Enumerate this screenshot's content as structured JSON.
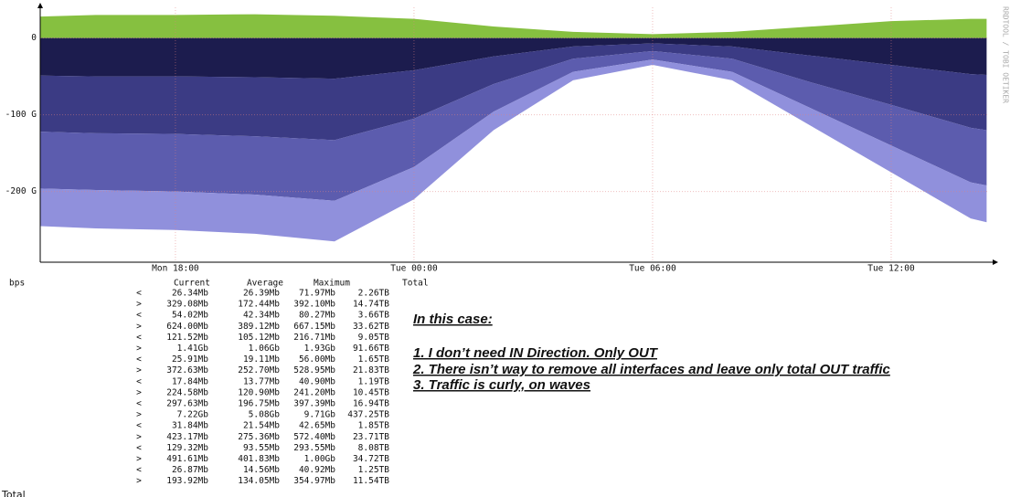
{
  "chart_data": {
    "type": "stacked-area",
    "x": [
      14.6,
      16,
      18,
      20,
      22,
      24,
      26,
      28,
      30,
      32,
      34,
      36,
      38,
      38.4
    ],
    "series": [
      {
        "color": "#86c040",
        "values": [
          28,
          30,
          30,
          31,
          29,
          25,
          15,
          8,
          5,
          8,
          15,
          22,
          25,
          25
        ]
      },
      {
        "color": "#1c1c4e",
        "values": [
          -49,
          -50,
          -50,
          -51,
          -53,
          -42,
          -24,
          -11,
          -7,
          -11,
          -23,
          -35,
          -47,
          -48
        ]
      },
      {
        "color": "#3b3b84",
        "values": [
          -73,
          -74,
          -75,
          -77,
          -80,
          -63,
          -36,
          -16,
          -10,
          -16,
          -35,
          -52,
          -70,
          -72
        ]
      },
      {
        "color": "#5c5cae",
        "values": [
          -74,
          -74,
          -75,
          -76,
          -79,
          -63,
          -36,
          -17,
          -11,
          -17,
          -34,
          -53,
          -71,
          -72
        ]
      },
      {
        "color": "#9090dc",
        "values": [
          -49,
          -50,
          -50,
          -51,
          -53,
          -42,
          -24,
          -11,
          -7,
          -11,
          -23,
          -35,
          -47,
          -48
        ]
      }
    ],
    "xlim": [
      14.6,
      38.46
    ],
    "xticks": [
      {
        "value": 18,
        "label": "Mon 18:00"
      },
      {
        "value": 24,
        "label": "Tue 00:00"
      },
      {
        "value": 30,
        "label": "Tue 06:00"
      },
      {
        "value": 36,
        "label": "Tue 12:00"
      }
    ],
    "ylim": [
      -292,
      40
    ],
    "yticks": [
      0,
      {
        "value": -100,
        "label": "-100 G"
      },
      {
        "value": -200,
        "label": "-200 G"
      }
    ],
    "grid": true,
    "watermark": "RRDTOOL / TOBI OETIKER"
  },
  "table": {
    "unit": "bps",
    "headers": [
      "Current",
      "Average",
      "Maximum",
      "Total"
    ],
    "rows": [
      [
        "<",
        "26.34Mb",
        "26.39Mb",
        "71.97Mb",
        "2.26TB"
      ],
      [
        ">",
        "329.08Mb",
        "172.44Mb",
        "392.10Mb",
        "14.74TB"
      ],
      [
        "<",
        "54.02Mb",
        "42.34Mb",
        "80.27Mb",
        "3.66TB"
      ],
      [
        ">",
        "624.00Mb",
        "389.12Mb",
        "667.15Mb",
        "33.62TB"
      ],
      [
        "<",
        "121.52Mb",
        "105.12Mb",
        "216.71Mb",
        "9.05TB"
      ],
      [
        ">",
        "1.41Gb",
        "1.06Gb",
        "1.93Gb",
        "91.66TB"
      ],
      [
        "<",
        "25.91Mb",
        "19.11Mb",
        "56.00Mb",
        "1.65TB"
      ],
      [
        ">",
        "372.63Mb",
        "252.70Mb",
        "528.95Mb",
        "21.83TB"
      ],
      [
        "<",
        "17.84Mb",
        "13.77Mb",
        "40.90Mb",
        "1.19TB"
      ],
      [
        ">",
        "224.58Mb",
        "120.90Mb",
        "241.20Mb",
        "10.45TB"
      ],
      [
        "<",
        "297.63Mb",
        "196.75Mb",
        "397.39Mb",
        "16.94TB"
      ],
      [
        ">",
        "7.22Gb",
        "5.08Gb",
        "9.71Gb",
        "437.25TB"
      ],
      [
        "<",
        "31.84Mb",
        "21.54Mb",
        "42.65Mb",
        "1.85TB"
      ],
      [
        ">",
        "423.17Mb",
        "275.36Mb",
        "572.40Mb",
        "23.71TB"
      ],
      [
        "<",
        "129.32Mb",
        "93.55Mb",
        "293.55Mb",
        "8.08TB"
      ],
      [
        ">",
        "491.61Mb",
        "401.83Mb",
        "1.00Gb",
        "34.72TB"
      ],
      [
        "<",
        "26.87Mb",
        "14.56Mb",
        "40.92Mb",
        "1.25TB"
      ],
      [
        ">",
        "193.92Mb",
        "134.05Mb",
        "354.97Mb",
        "11.54TB"
      ]
    ],
    "footer": "Total"
  },
  "notes": {
    "heading": "In this case:",
    "items": [
      "1. I don’t need IN Direction. Only OUT",
      "2. There isn’t way to remove all interfaces and leave only total OUT traffic",
      "3. Traffic is curly, on waves"
    ]
  }
}
